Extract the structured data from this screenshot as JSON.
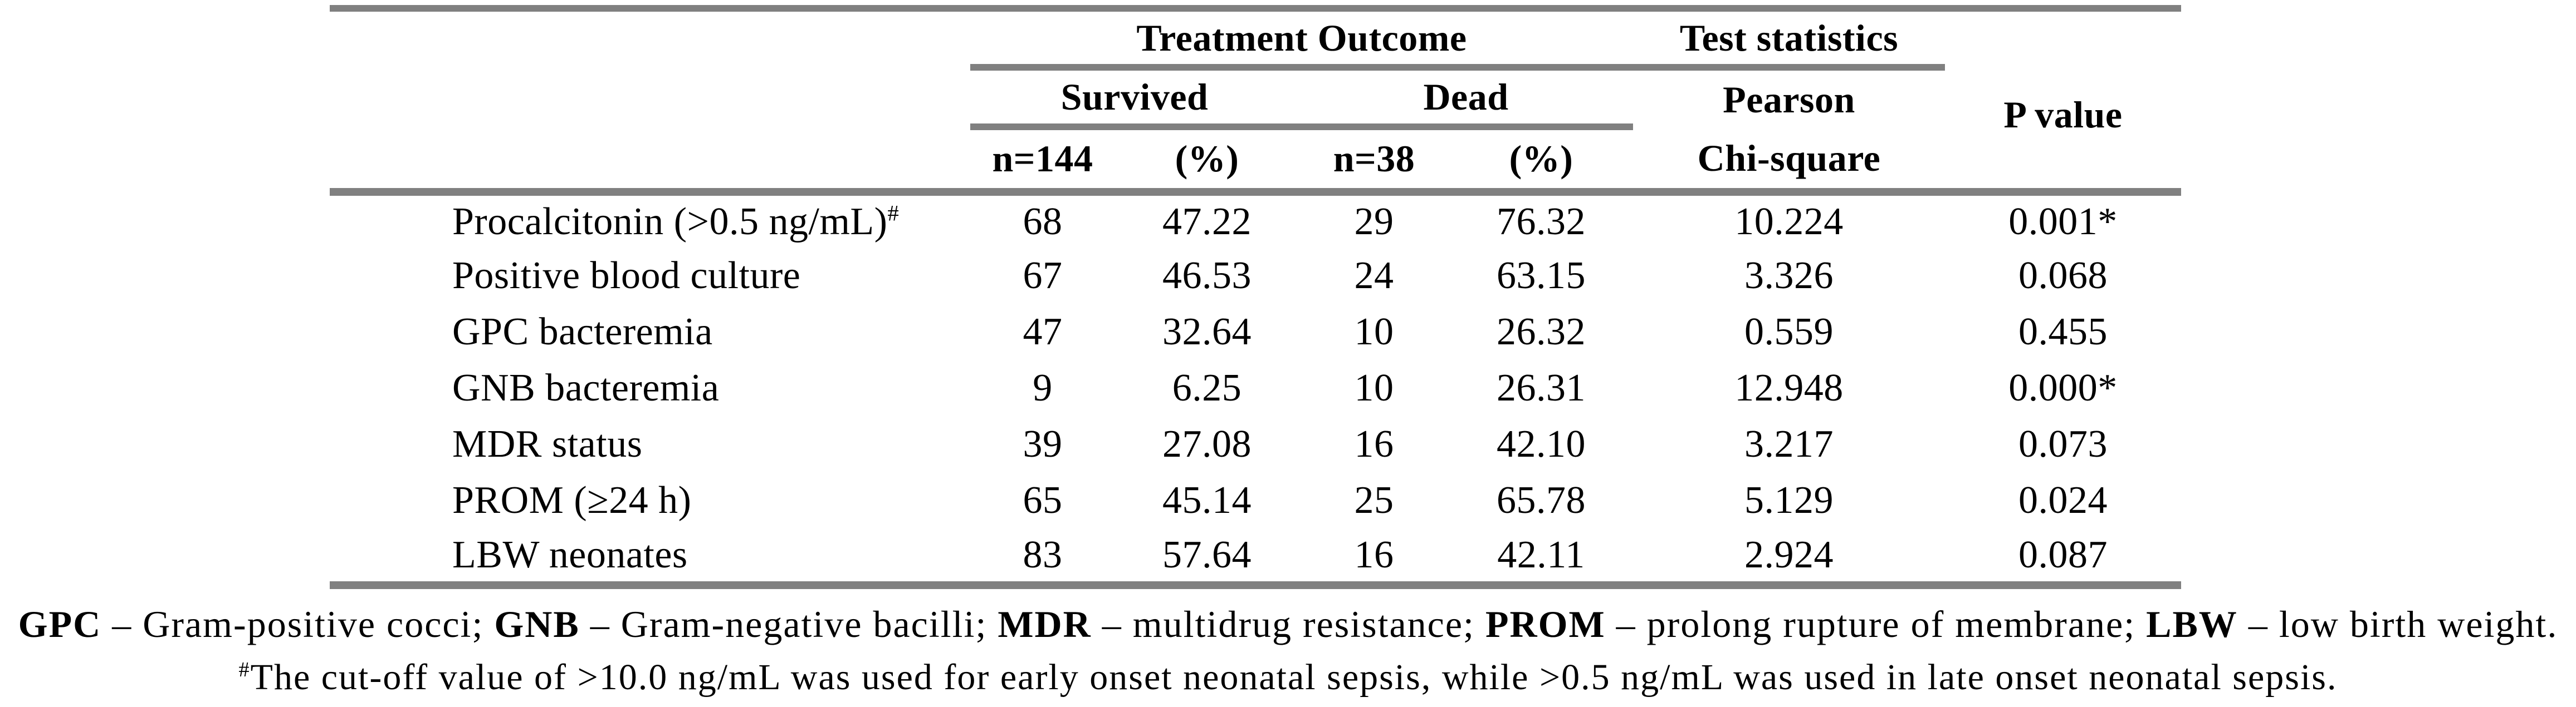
{
  "table": {
    "header": {
      "treatment_outcome": "Treatment Outcome",
      "test_statistics": "Test statistics",
      "survived": "Survived",
      "dead": "Dead",
      "n_survived": "n=144",
      "pct_survived": "(%)",
      "n_dead": "n=38",
      "pct_dead": "(%)",
      "chi_line1": "Pearson",
      "chi_line2": "Chi-square",
      "p_value": "P value"
    },
    "rows": [
      {
        "label": "Procalcitonin (>0.5 ng/mL)",
        "label_sup": "#",
        "n_survived": "68",
        "pct_survived": "47.22",
        "n_dead": "29",
        "pct_dead": "76.32",
        "chi_square": "10.224",
        "p_value": "0.001*"
      },
      {
        "label": "Positive blood culture",
        "label_sup": "",
        "n_survived": "67",
        "pct_survived": "46.53",
        "n_dead": "24",
        "pct_dead": "63.15",
        "chi_square": "3.326",
        "p_value": "0.068"
      },
      {
        "label": "GPC bacteremia",
        "label_sup": "",
        "n_survived": "47",
        "pct_survived": "32.64",
        "n_dead": "10",
        "pct_dead": "26.32",
        "chi_square": "0.559",
        "p_value": "0.455"
      },
      {
        "label": "GNB bacteremia",
        "label_sup": "",
        "n_survived": "9",
        "pct_survived": "6.25",
        "n_dead": "10",
        "pct_dead": "26.31",
        "chi_square": "12.948",
        "p_value": "0.000*"
      },
      {
        "label": "MDR status",
        "label_sup": "",
        "n_survived": "39",
        "pct_survived": "27.08",
        "n_dead": "16",
        "pct_dead": "42.10",
        "chi_square": "3.217",
        "p_value": "0.073"
      },
      {
        "label": "PROM (≥24 h)",
        "label_sup": "",
        "n_survived": "65",
        "pct_survived": "45.14",
        "n_dead": "25",
        "pct_dead": "65.78",
        "chi_square": "5.129",
        "p_value": "0.024"
      },
      {
        "label": "LBW neonates",
        "label_sup": "",
        "n_survived": "83",
        "pct_survived": "57.64",
        "n_dead": "16",
        "pct_dead": "42.11",
        "chi_square": "2.924",
        "p_value": "0.087"
      }
    ]
  },
  "footnotes": {
    "line1_segments": [
      {
        "text": "GPC",
        "bold": true
      },
      {
        "text": " – Gram-positive cocci; ",
        "bold": false
      },
      {
        "text": "GNB",
        "bold": true
      },
      {
        "text": " – Gram-negative bacilli; ",
        "bold": false
      },
      {
        "text": "MDR",
        "bold": true
      },
      {
        "text": " – multidrug resistance; ",
        "bold": false
      },
      {
        "text": "PROM",
        "bold": true
      },
      {
        "text": " – prolong rupture of membrane; ",
        "bold": false
      },
      {
        "text": "LBW",
        "bold": true
      },
      {
        "text": " – low birth weight.",
        "bold": false
      }
    ],
    "line2_sup": "#",
    "line2_text": "The cut-off value of >10.0 ng/mL was used for early onset neonatal sepsis, while >0.5 ng/mL was used in late onset neonatal sepsis."
  },
  "colors": {
    "rule_gray": "#808080",
    "text": "#000000",
    "background": "#ffffff"
  }
}
